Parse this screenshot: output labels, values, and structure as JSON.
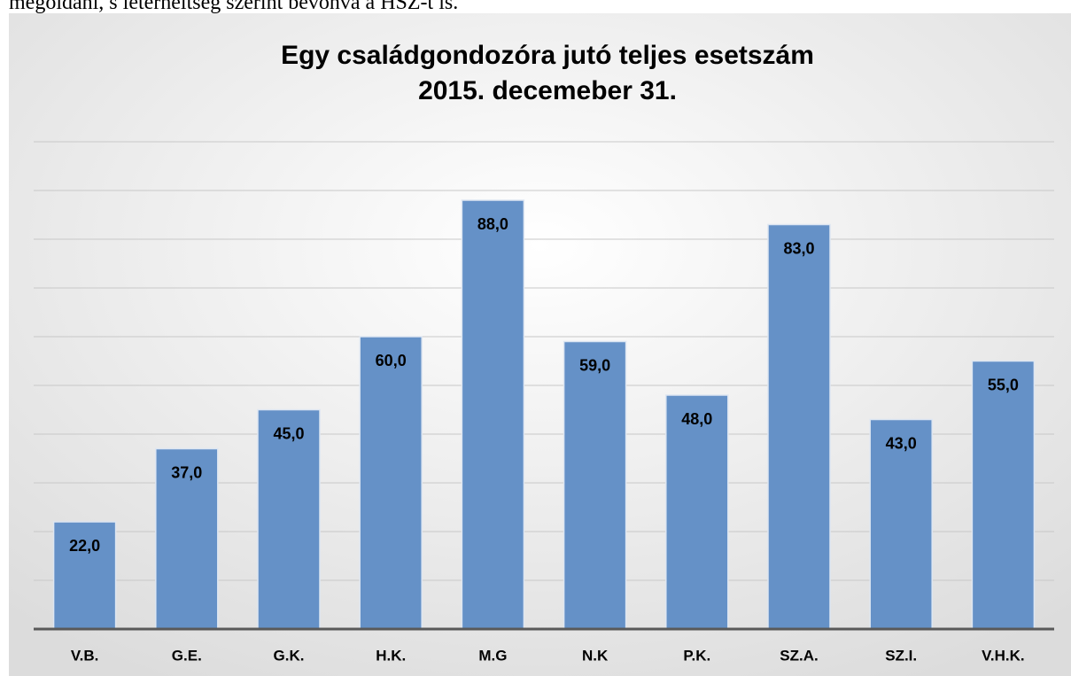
{
  "caption": "megoldani, s leterheltség szerint bevonva a HSZ-t is.",
  "chart_data": {
    "type": "bar",
    "title": [
      "Egy családgondozóra jutó teljes esetszám",
      "2015. decemeber 31."
    ],
    "categories": [
      "V.B.",
      "G.E.",
      "G.K.",
      "H.K.",
      "M.G",
      "N.K",
      "P.K.",
      "SZ.A.",
      "SZ.I.",
      "V.H.K."
    ],
    "values": [
      22,
      37,
      45,
      60,
      88,
      59,
      48,
      83,
      43,
      55
    ],
    "value_labels": [
      "22,0",
      "37,0",
      "45,0",
      "60,0",
      "88,0",
      "59,0",
      "48,0",
      "83,0",
      "43,0",
      "55,0"
    ],
    "color": "#6591c7",
    "ylim": [
      0,
      100
    ],
    "yticks": [
      0,
      10,
      20,
      30,
      40,
      50,
      60,
      70,
      80,
      90,
      100
    ],
    "grid": true
  }
}
